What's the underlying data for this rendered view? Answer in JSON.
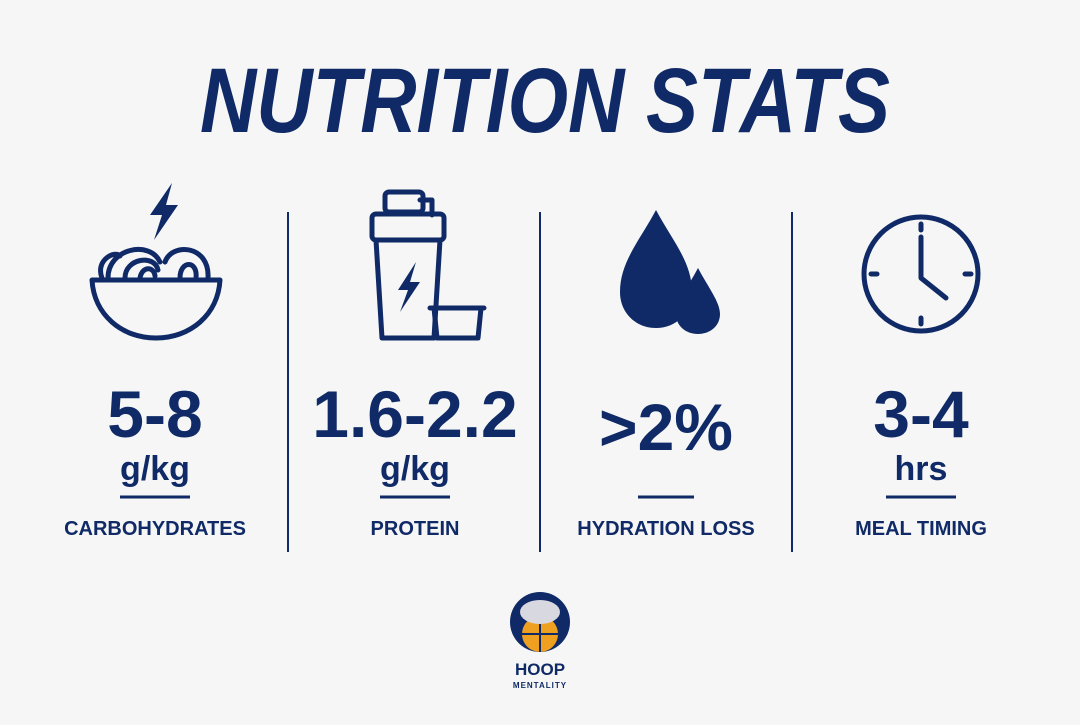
{
  "title": "NUTRITION STATS",
  "stats": [
    {
      "value": "5-8",
      "unit": "g/kg",
      "label": "CARBOHYDRATES"
    },
    {
      "value": "1.6-2.2",
      "unit": "g/kg",
      "label": "PROTEIN"
    },
    {
      "value": ">2%",
      "label": "HYDRATION LOSS"
    },
    {
      "value": "3-4",
      "unit": "hrs",
      "label": "MEAL TIMING"
    }
  ],
  "logo": {
    "name": "HOOP",
    "tagline": "MENTALITY"
  }
}
